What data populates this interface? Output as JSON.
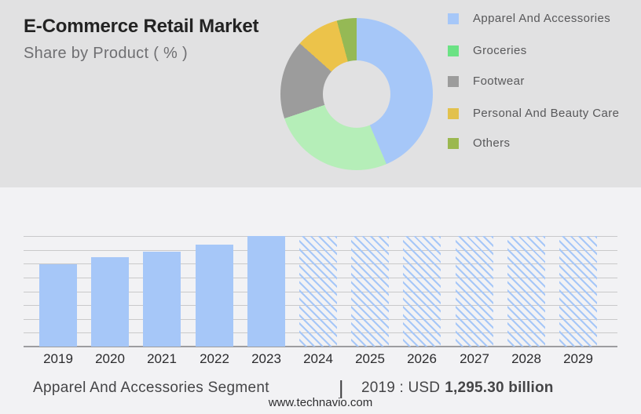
{
  "header": {
    "title": "E-Commerce Retail Market",
    "subtitle": "Share by Product ( % )"
  },
  "chart_data": [
    {
      "type": "pie",
      "donut": true,
      "title": "Share by Product ( % )",
      "legend_position": "right",
      "segments": [
        {
          "label": "Apparel And Accessories",
          "value": 43.6,
          "color": "#a6c7f8",
          "legend_color": "#a6c7f8"
        },
        {
          "label": "Groceries",
          "value": 26.2,
          "color": "#b5eeb8",
          "legend_color": "#6be284"
        },
        {
          "label": "Footwear",
          "value": 16.8,
          "color": "#9c9c9c",
          "legend_color": "#9c9c9c"
        },
        {
          "label": "Personal And Beauty Care",
          "value": 9.2,
          "color": "#ecc34a",
          "legend_color": "#e2c14d"
        },
        {
          "label": "Others",
          "value": 4.2,
          "color": "#95b955",
          "legend_color": "#9bb850"
        }
      ]
    },
    {
      "type": "bar",
      "title": "Apparel And Accessories Segment",
      "categories": [
        "2019",
        "2020",
        "2021",
        "2022",
        "2023",
        "2024",
        "2025",
        "2026",
        "2027",
        "2028",
        "2029"
      ],
      "values": [
        1295.3,
        1405,
        1490,
        1600,
        1735,
        null,
        null,
        null,
        null,
        null,
        null
      ],
      "forecast": [
        false,
        false,
        false,
        false,
        false,
        true,
        true,
        true,
        true,
        true,
        true
      ],
      "unit": "USD billion",
      "ylim": [
        0,
        1735
      ],
      "gridline_intervals": 8,
      "annotation": "2019 : USD 1,295.30 billion"
    }
  ],
  "caption": {
    "segment_label": "Apparel And Accessories Segment",
    "divider": "|",
    "value_prefix": "2019 : USD",
    "value_bold": "1,295.30 billion"
  },
  "footer": {
    "website": "www.technavio.com"
  },
  "colors": {
    "header_bg": "#e1e1e2",
    "body_bg": "#f2f2f4",
    "bar_solid": "#a6c7f8",
    "hatch_line": "#a6c7f8",
    "gridline": "#c9c9ca",
    "axis_line": "#9d9da0"
  }
}
